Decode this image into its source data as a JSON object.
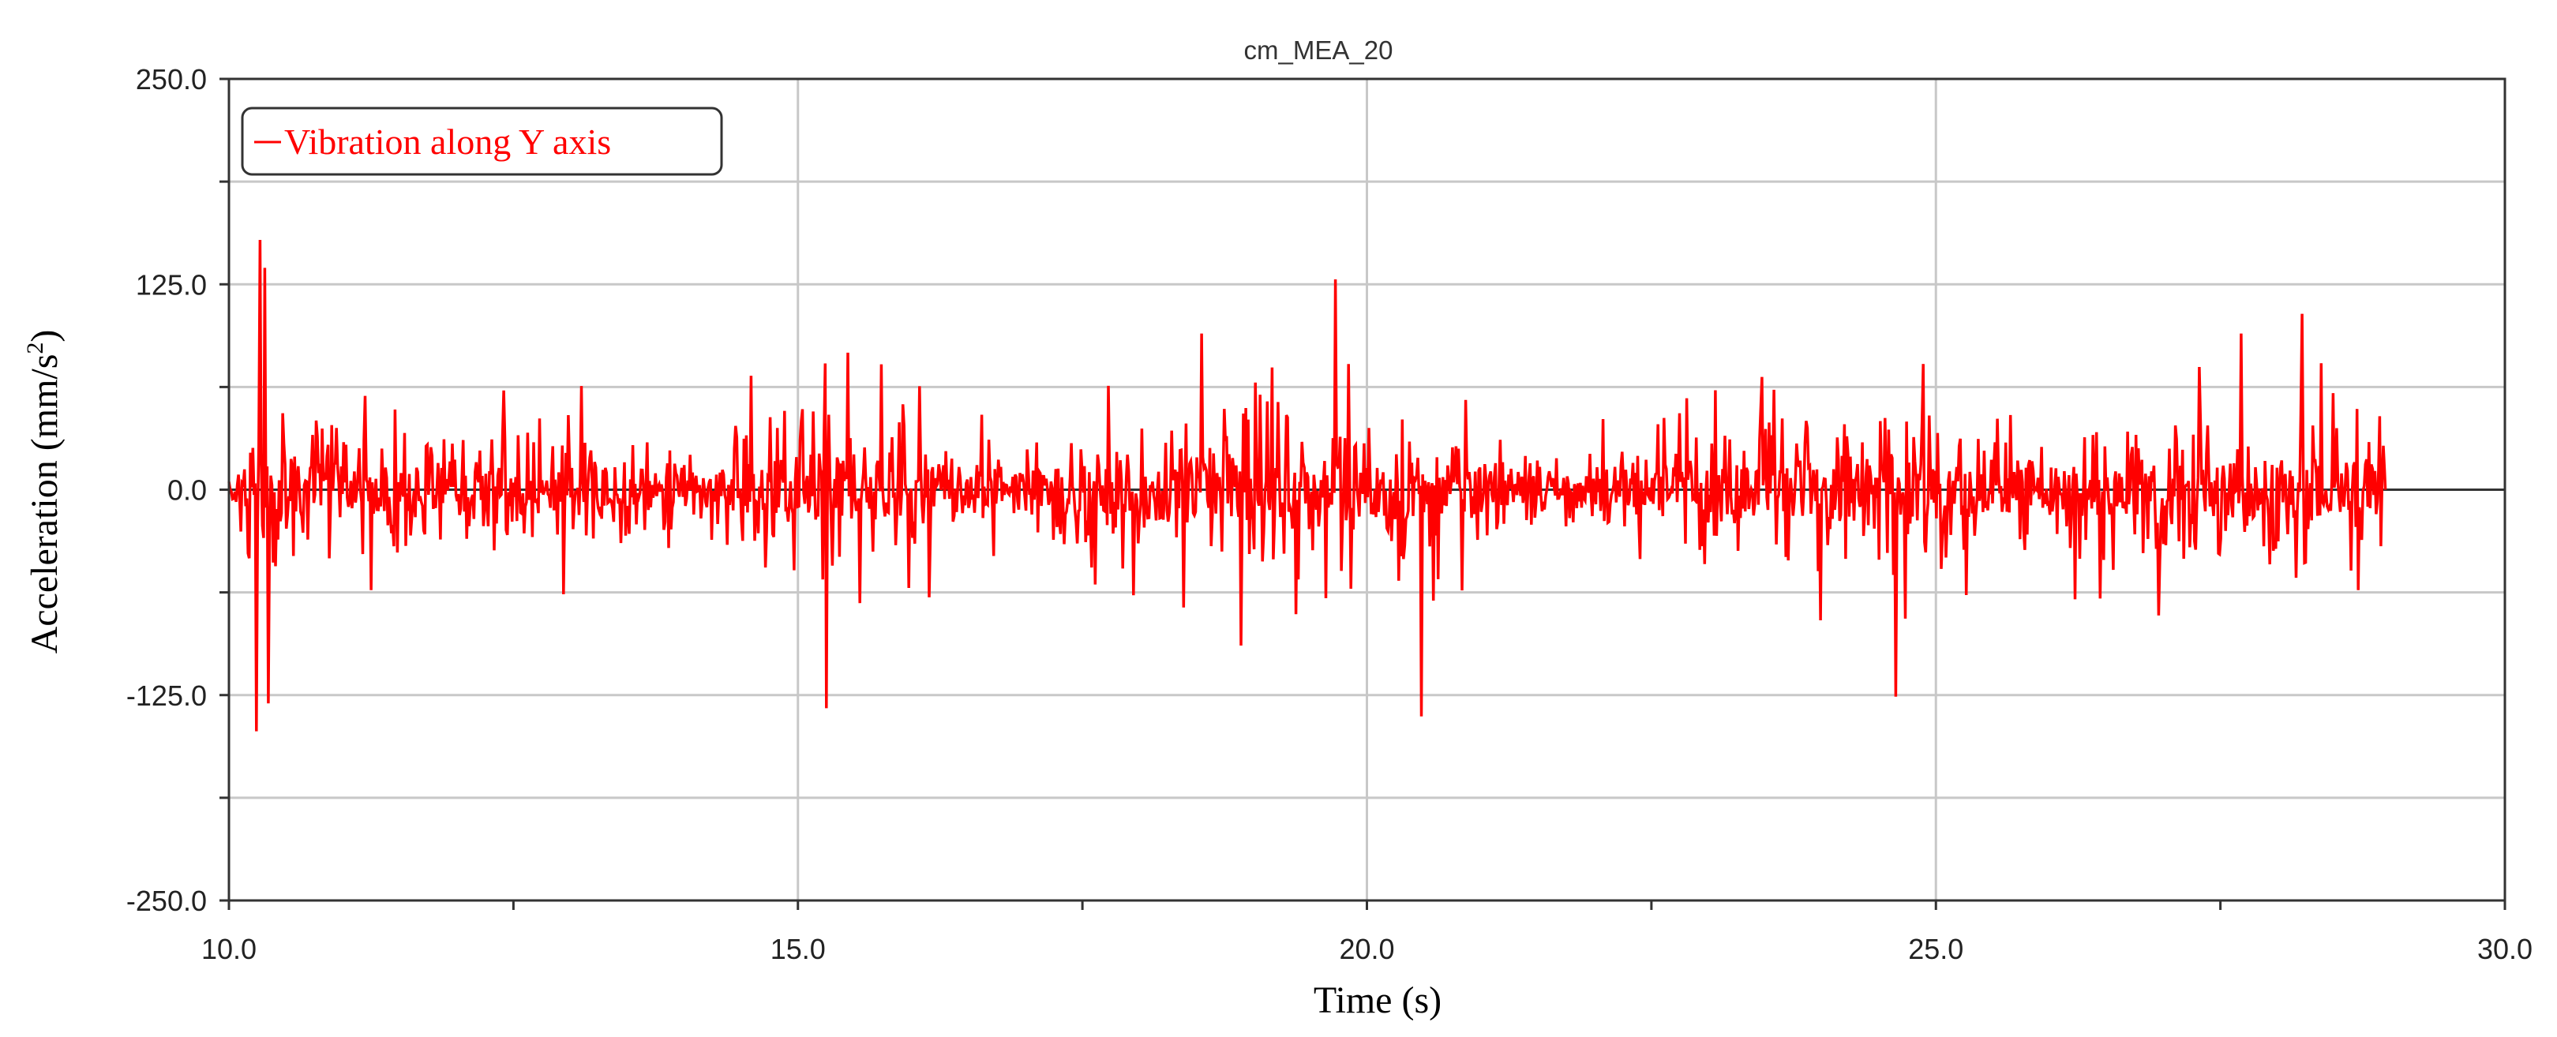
{
  "chart_data": {
    "type": "line",
    "title": "cm_MEA_20",
    "xlabel": "Time (s)",
    "ylabel_main": "Acceleration (mm/s",
    "ylabel_sup": "2",
    "ylabel_close": ")",
    "xlim": [
      10.0,
      30.0
    ],
    "ylim": [
      -250.0,
      250.0
    ],
    "x_ticks": [
      10.0,
      15.0,
      20.0,
      25.0,
      30.0
    ],
    "x_tick_labels": [
      "10.0",
      "15.0",
      "20.0",
      "25.0",
      "30.0"
    ],
    "x_minor_ticks": [
      12.5,
      17.5,
      22.5,
      27.5
    ],
    "y_ticks": [
      -250.0,
      -125.0,
      0.0,
      125.0,
      250.0
    ],
    "y_tick_labels": [
      "-250.0",
      "-125.0",
      "0.0",
      "125.0",
      "250.0"
    ],
    "y_minor_ticks": [
      -187.5,
      -62.5,
      62.5,
      187.5
    ],
    "grid": true,
    "legend_position": "top-left",
    "series": [
      {
        "name": "Vibration along Y axis",
        "color": "#ff0000",
        "x_start": 10.0,
        "x_end": 28.95,
        "notable_points": [
          {
            "x": 10.27,
            "y": 152
          },
          {
            "x": 10.31,
            "y": 135
          },
          {
            "x": 10.24,
            "y": -147
          },
          {
            "x": 10.35,
            "y": -130
          },
          {
            "x": 19.72,
            "y": 128
          },
          {
            "x": 20.48,
            "y": -138
          },
          {
            "x": 15.25,
            "y": -133
          },
          {
            "x": 24.65,
            "y": -126
          },
          {
            "x": 28.22,
            "y": 107
          },
          {
            "x": 18.55,
            "y": 95
          },
          {
            "x": 27.68,
            "y": 95
          },
          {
            "x": 23.0,
            "y": -20
          },
          {
            "x": 14.0,
            "y": 15
          }
        ],
        "envelope": [
          {
            "t": 10.0,
            "amp": 20
          },
          {
            "t": 10.12,
            "amp": 45
          },
          {
            "t": 10.25,
            "amp": 110
          },
          {
            "t": 10.5,
            "amp": 60
          },
          {
            "t": 11.0,
            "amp": 55
          },
          {
            "t": 12.0,
            "amp": 40
          },
          {
            "t": 13.0,
            "amp": 55
          },
          {
            "t": 14.0,
            "amp": 35
          },
          {
            "t": 15.2,
            "amp": 75
          },
          {
            "t": 16.0,
            "amp": 55
          },
          {
            "t": 17.2,
            "amp": 42
          },
          {
            "t": 18.6,
            "amp": 75
          },
          {
            "t": 19.7,
            "amp": 70
          },
          {
            "t": 20.5,
            "amp": 55
          },
          {
            "t": 21.5,
            "amp": 28
          },
          {
            "t": 22.3,
            "amp": 35
          },
          {
            "t": 23.0,
            "amp": 50
          },
          {
            "t": 24.6,
            "amp": 70
          },
          {
            "t": 25.5,
            "amp": 45
          },
          {
            "t": 26.5,
            "amp": 60
          },
          {
            "t": 27.5,
            "amp": 55
          },
          {
            "t": 28.2,
            "amp": 65
          },
          {
            "t": 28.8,
            "amp": 70
          },
          {
            "t": 28.95,
            "amp": 40
          }
        ]
      }
    ]
  }
}
